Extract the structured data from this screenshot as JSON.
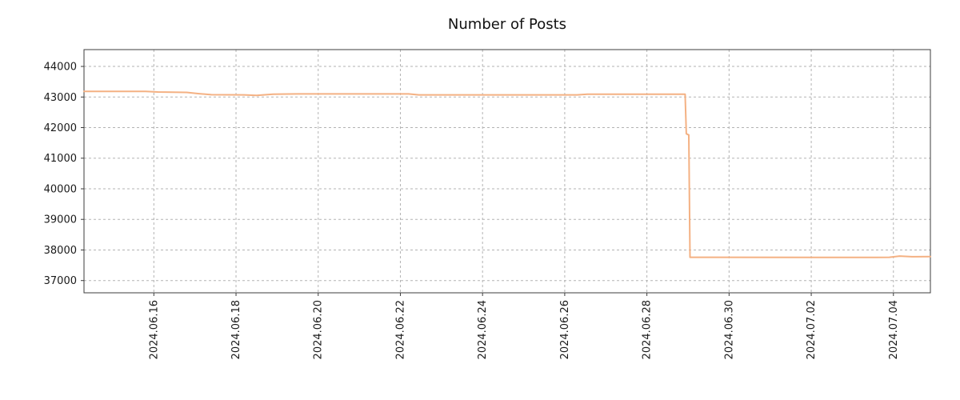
{
  "chart_data": {
    "type": "line",
    "title": "Number of Posts",
    "xlabel": "",
    "ylabel": "",
    "grid": "dashed",
    "legend": "none",
    "line_color": "#f4b183",
    "xlim": [
      14.3,
      34.9
    ],
    "ylim": [
      36600,
      44550
    ],
    "x_tick_values": [
      16,
      18,
      20,
      22,
      24,
      26,
      28,
      30,
      32,
      34
    ],
    "x_tick_labels": [
      "2024.06.16",
      "2024.06.18",
      "2024.06.20",
      "2024.06.22",
      "2024.06.24",
      "2024.06.26",
      "2024.06.28",
      "2024.06.30",
      "2024.07.02",
      "2024.07.04"
    ],
    "y_ticks": [
      37000,
      38000,
      39000,
      40000,
      41000,
      42000,
      43000,
      44000
    ],
    "series": [
      {
        "name": "Number of Posts",
        "points": [
          [
            14.3,
            43185
          ],
          [
            15.8,
            43185
          ],
          [
            16.1,
            43165
          ],
          [
            16.8,
            43150
          ],
          [
            17.1,
            43110
          ],
          [
            17.4,
            43075
          ],
          [
            18.2,
            43070
          ],
          [
            18.5,
            43055
          ],
          [
            18.9,
            43090
          ],
          [
            19.5,
            43100
          ],
          [
            22.2,
            43100
          ],
          [
            22.45,
            43070
          ],
          [
            26.3,
            43070
          ],
          [
            26.55,
            43090
          ],
          [
            28.93,
            43090
          ],
          [
            28.96,
            41800
          ],
          [
            29.02,
            41760
          ],
          [
            29.05,
            37760
          ],
          [
            33.6,
            37755
          ],
          [
            33.9,
            37760
          ],
          [
            34.15,
            37800
          ],
          [
            34.45,
            37780
          ],
          [
            34.9,
            37785
          ]
        ]
      }
    ]
  }
}
